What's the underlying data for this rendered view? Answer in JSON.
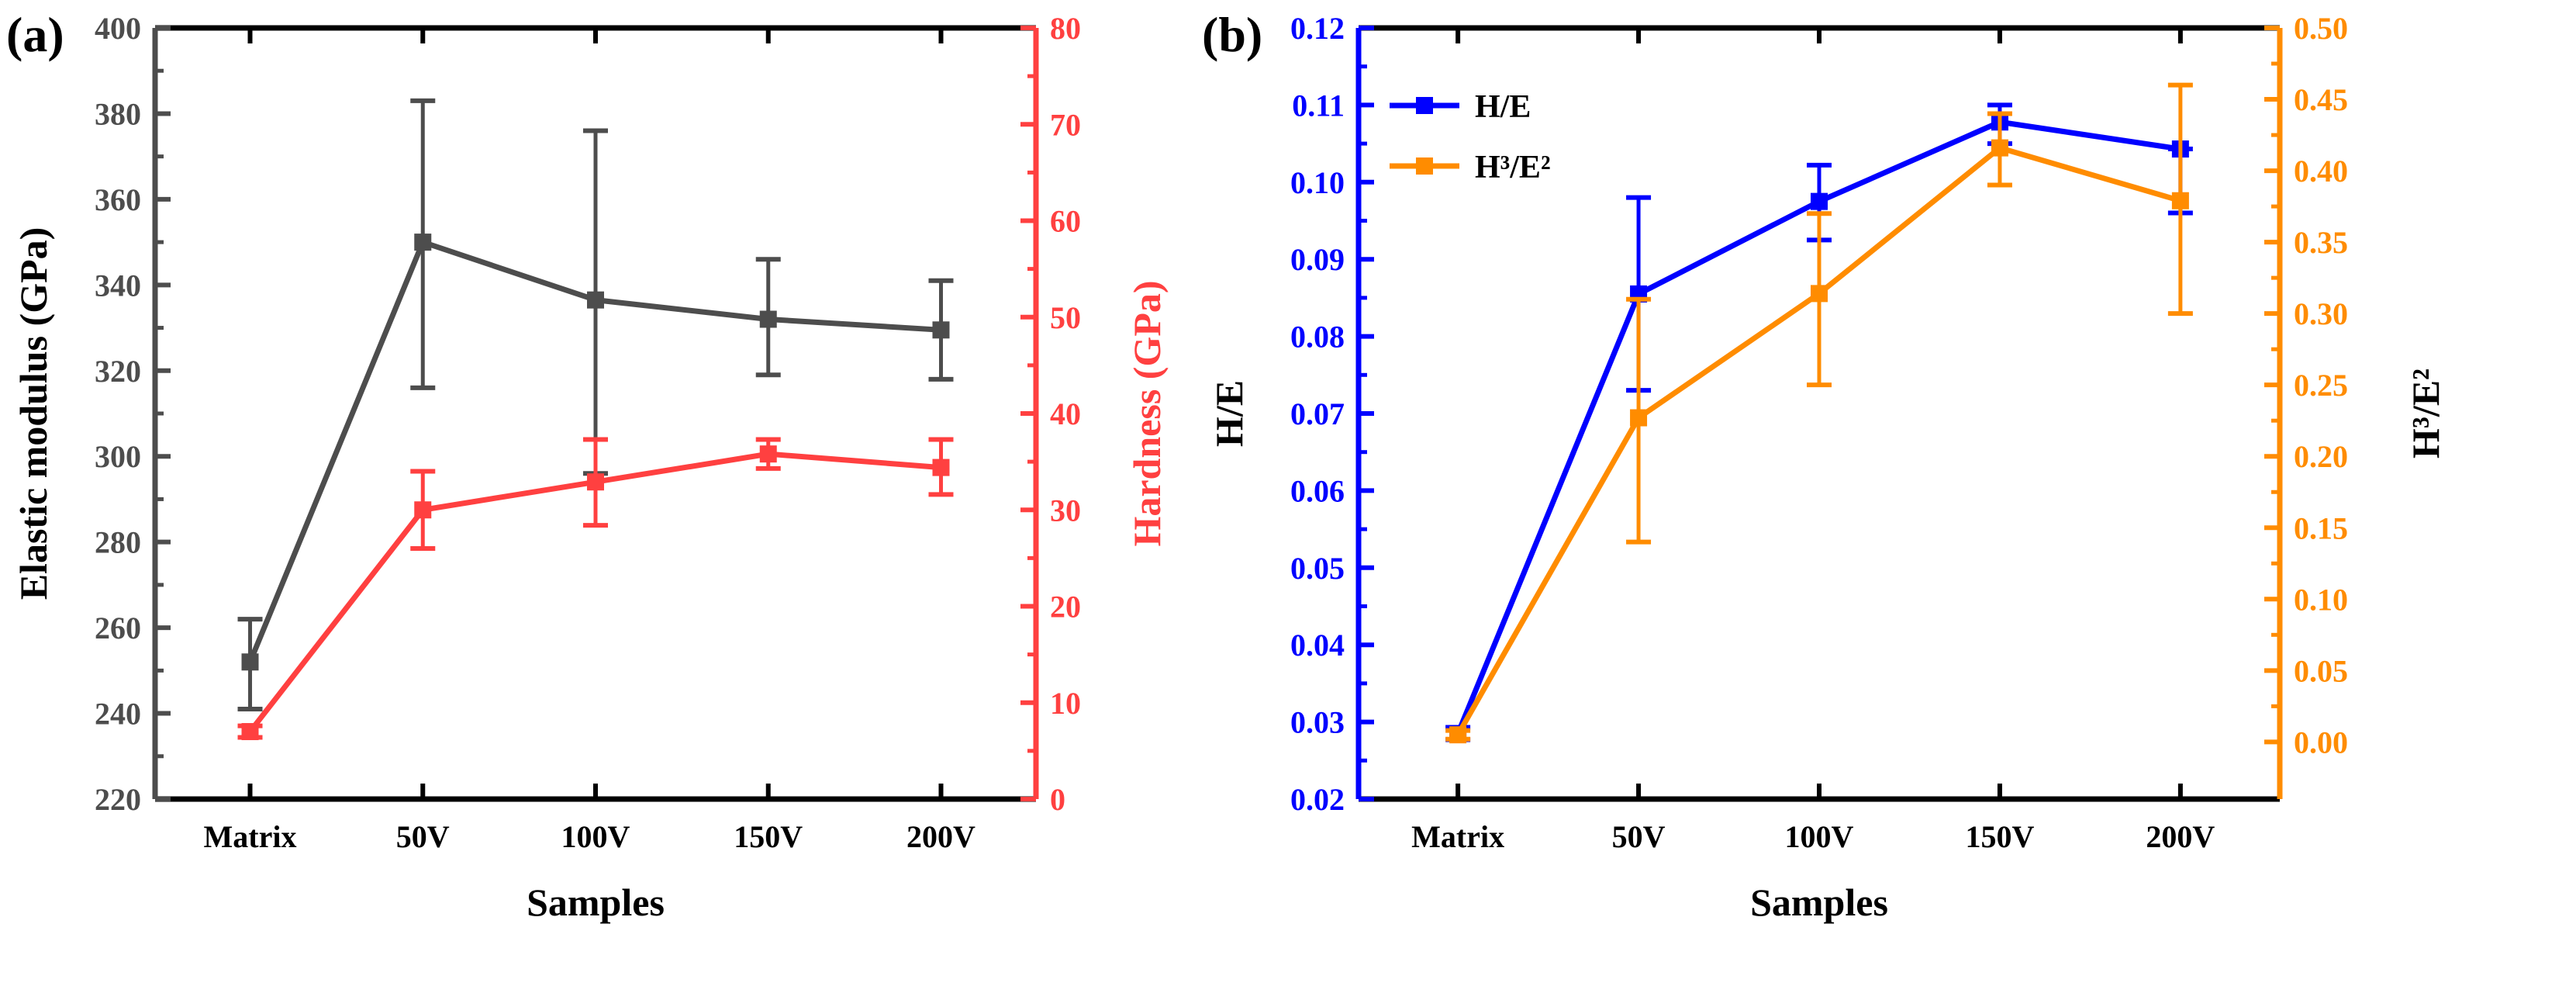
{
  "chart_data": [
    {
      "type": "line",
      "panel_label": "(a)",
      "categories": [
        "Matrix",
        "50V",
        "100V",
        "150V",
        "200V"
      ],
      "xlabel": "Samples",
      "y_left": {
        "label": "Elastic modulus (GPa)",
        "lim": [
          220,
          400
        ],
        "ticks": [
          220,
          240,
          260,
          280,
          300,
          320,
          340,
          360,
          380,
          400
        ],
        "color": "#4d4d4d"
      },
      "y_right": {
        "label": "Hardness (GPa)",
        "lim": [
          0,
          80
        ],
        "ticks": [
          0,
          10,
          20,
          30,
          40,
          50,
          60,
          70,
          80
        ],
        "color": "#ff4040"
      },
      "series": [
        {
          "name": "Elastic modulus",
          "axis": "left",
          "color": "#4d4d4d",
          "values": [
            252,
            350,
            336.5,
            332,
            329.5
          ],
          "err_low": [
            241,
            316,
            296,
            319,
            318
          ],
          "err_high": [
            262,
            383,
            376,
            346,
            341
          ]
        },
        {
          "name": "Hardness",
          "axis": "right",
          "color": "#ff4040",
          "values": [
            7,
            30,
            32.9,
            35.8,
            34.4
          ],
          "err_low": [
            6.4,
            26,
            28.4,
            34.3,
            31.6
          ],
          "err_high": [
            7.6,
            34,
            37.3,
            37.3,
            37.3
          ]
        }
      ],
      "legend": "none"
    },
    {
      "type": "line",
      "panel_label": "(b)",
      "categories": [
        "Matrix",
        "50V",
        "100V",
        "150V",
        "200V"
      ],
      "xlabel": "Samples",
      "y_left": {
        "label": "H/E",
        "lim": [
          0.02,
          0.12
        ],
        "ticks": [
          "0.02",
          "0.03",
          "0.04",
          "0.05",
          "0.06",
          "0.07",
          "0.08",
          "0.09",
          "0.10",
          "0.11",
          "0.12"
        ],
        "color": "#0000ff"
      },
      "y_right": {
        "label": "H³/E²",
        "lim": [
          -0.04,
          0.5
        ],
        "ticks": [
          "0.00",
          "0.05",
          "0.10",
          "0.15",
          "0.20",
          "0.25",
          "0.30",
          "0.35",
          "0.40",
          "0.45",
          "0.50"
        ],
        "color": "#ff8c00"
      },
      "series": [
        {
          "name": "H/E",
          "axis": "left",
          "color": "#0000ff",
          "values": [
            0.0285,
            0.0855,
            0.0975,
            0.1078,
            0.1043
          ],
          "err_low": [
            0.0277,
            0.073,
            0.0925,
            0.105,
            0.096
          ],
          "err_high": [
            0.0293,
            0.098,
            0.1022,
            0.11,
            0.1043
          ]
        },
        {
          "name": "H³/E²",
          "axis": "right",
          "color": "#ff8c00",
          "values": [
            0.005,
            0.227,
            0.314,
            0.416,
            0.379
          ],
          "err_low": [
            0.002,
            0.14,
            0.25,
            0.39,
            0.3
          ],
          "err_high": [
            0.008,
            0.31,
            0.37,
            0.44,
            0.46
          ]
        }
      ],
      "legend": "top-left"
    }
  ]
}
